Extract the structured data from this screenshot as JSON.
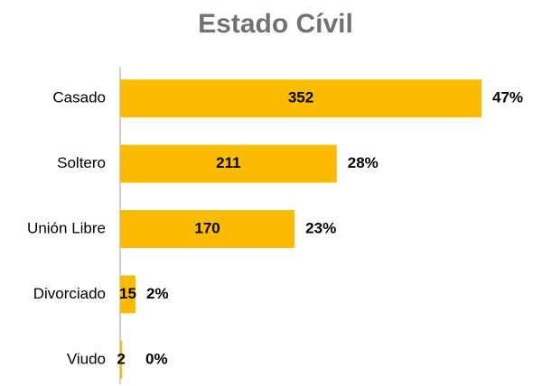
{
  "chart_data": {
    "type": "bar",
    "orientation": "horizontal",
    "title": "Estado Cívil",
    "categories": [
      "Casado",
      "Soltero",
      "Unión Libre",
      "Divorciado",
      "Viudo"
    ],
    "values": [
      352,
      211,
      170,
      15,
      2
    ],
    "share_labels": [
      "47%",
      "28%",
      "23%",
      "2%",
      "0%"
    ],
    "color": "#fbbc00"
  }
}
